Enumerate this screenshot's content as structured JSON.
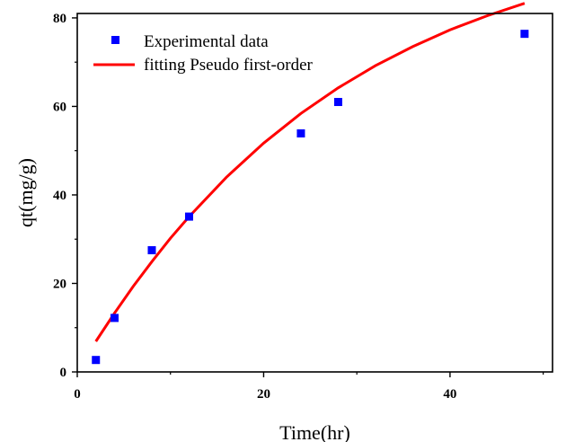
{
  "chart_data": {
    "type": "scatter",
    "title": "",
    "xlabel": "Time(hr)",
    "ylabel": "qt(mg/g)",
    "xlim": [
      0,
      51
    ],
    "ylim": [
      0,
      81
    ],
    "xticks": [
      0,
      20,
      40
    ],
    "yticks": [
      0,
      20,
      40,
      60,
      80
    ],
    "grid": false,
    "legend_position": "top-left",
    "series": [
      {
        "name": "Experimental data",
        "kind": "scatter",
        "marker": "square",
        "color": "#0000ff",
        "x": [
          2,
          4,
          8,
          12,
          24,
          28,
          48
        ],
        "y": [
          2.7,
          12.2,
          27.5,
          35.1,
          53.9,
          61.0,
          76.4
        ]
      },
      {
        "name": "fitting Pseudo first-order",
        "kind": "line",
        "color": "#ff0000",
        "x": [
          2,
          4,
          6,
          8,
          10,
          12,
          16,
          20,
          24,
          28,
          32,
          36,
          40,
          44,
          48
        ],
        "y": [
          6.9,
          13.3,
          19.3,
          24.9,
          30.2,
          35.1,
          44.0,
          51.7,
          58.4,
          64.2,
          69.2,
          73.5,
          77.3,
          80.5,
          83.3
        ]
      }
    ]
  }
}
